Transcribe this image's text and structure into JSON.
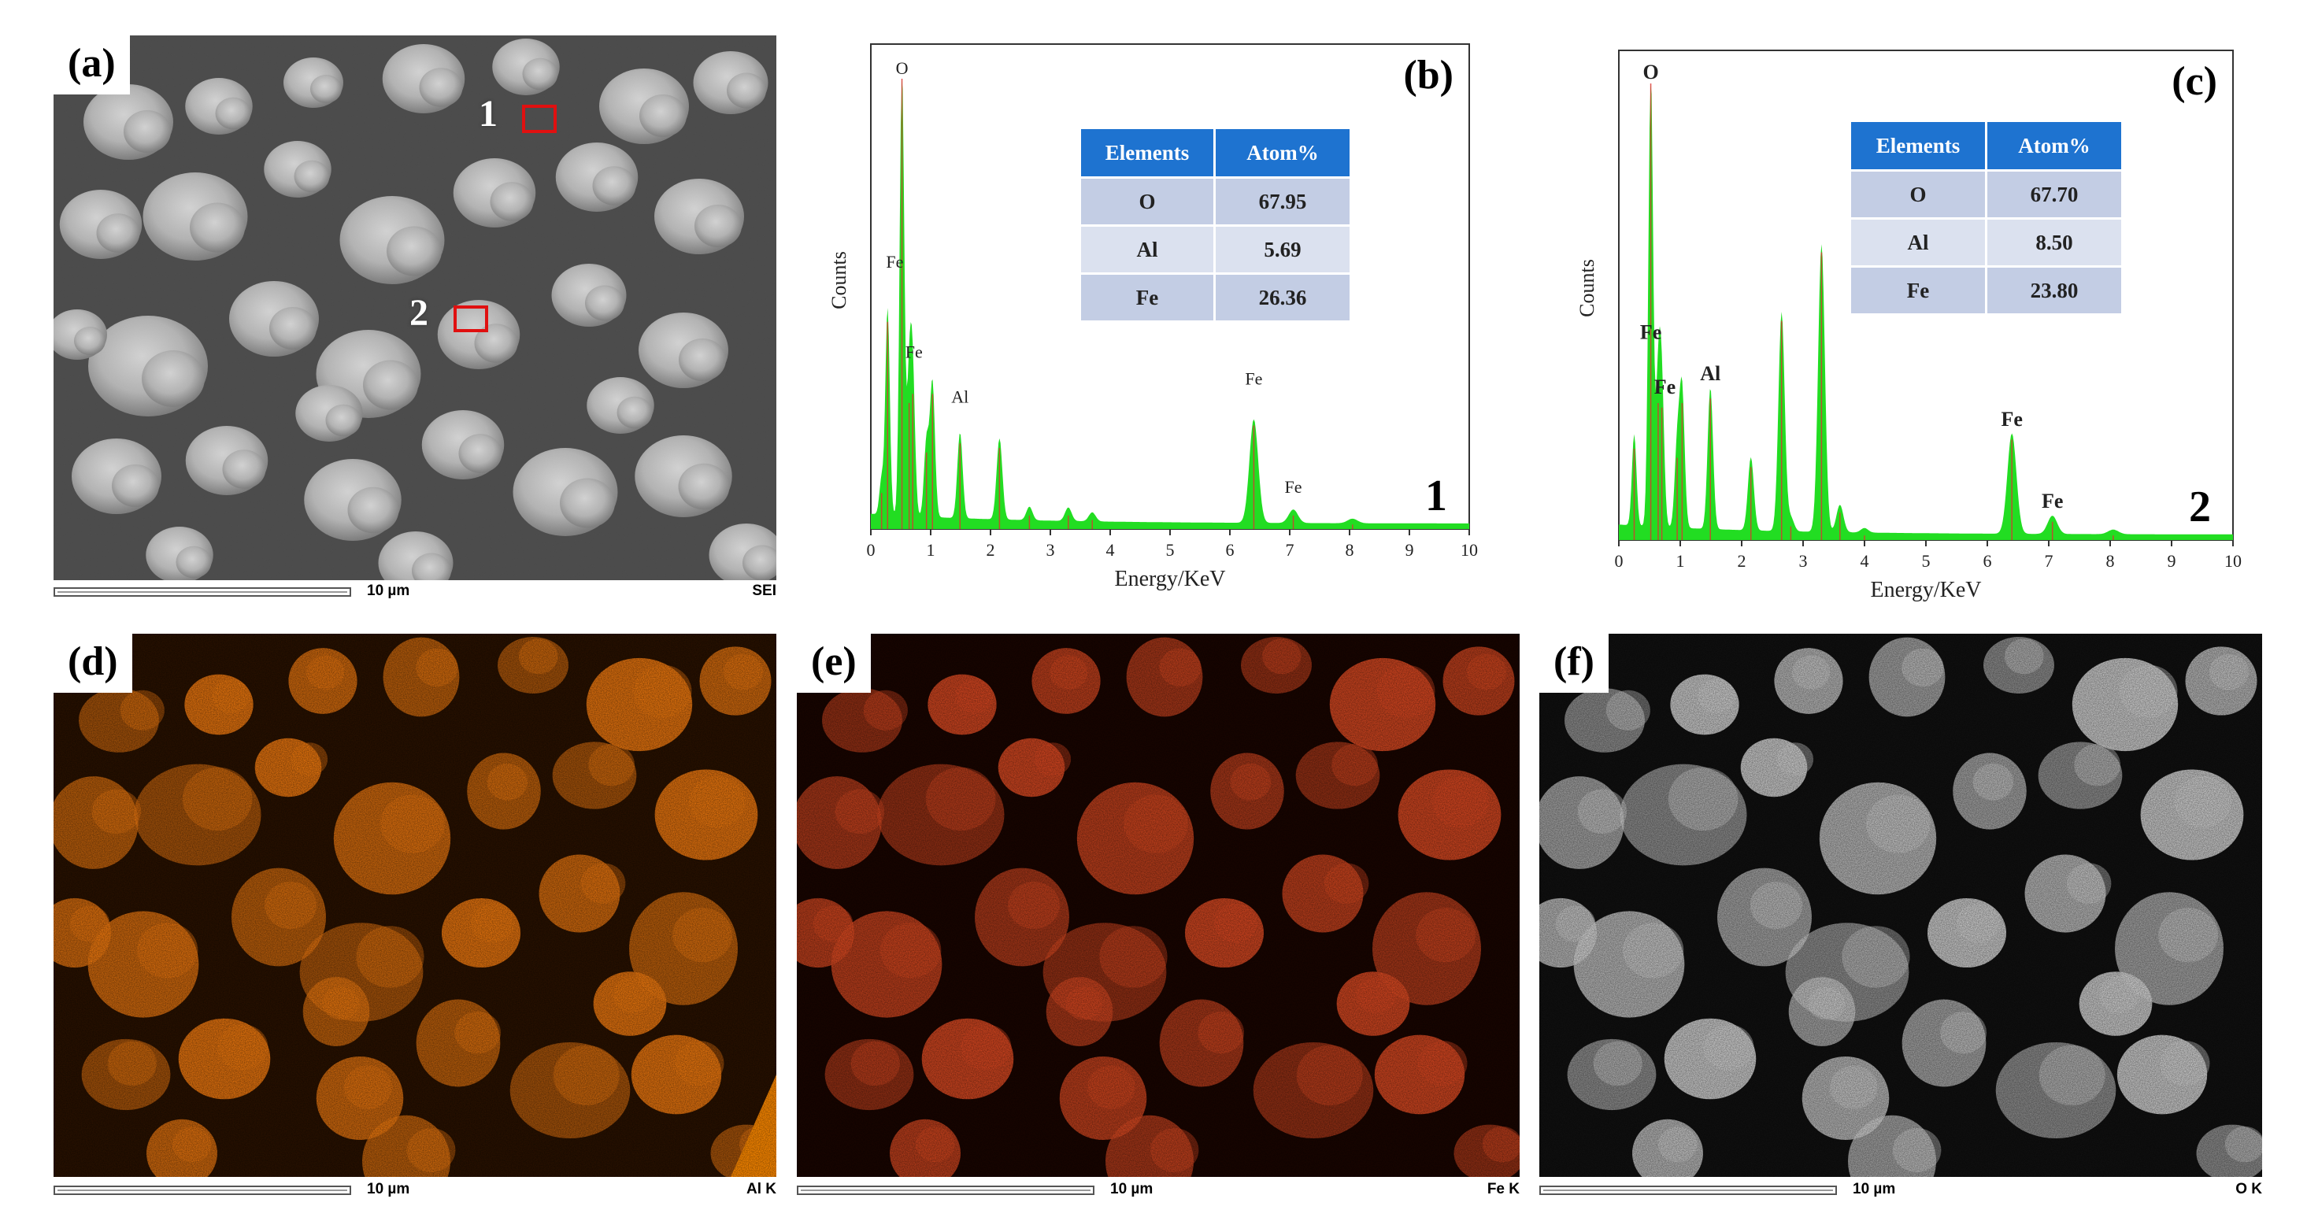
{
  "panels": {
    "a": {
      "tag": "(a)",
      "scale": "10 µm",
      "detector": "SEI",
      "marker1": "1",
      "marker2": "2"
    },
    "b": {
      "tag": "(b)",
      "spot": "1"
    },
    "c": {
      "tag": "(c)",
      "spot": "2"
    },
    "d": {
      "tag": "(d)",
      "scale": "10 µm",
      "detector": "Al K",
      "color": "#f07a10"
    },
    "e": {
      "tag": "(e)",
      "scale": "10 µm",
      "detector": "Fe K",
      "color": "#dc4a22"
    },
    "f": {
      "tag": "(f)",
      "scale": "10 µm",
      "detector": "O K",
      "color": "#d8d8d8"
    }
  },
  "tables": {
    "b": {
      "head": [
        "Elements",
        "Atom%"
      ],
      "rows": [
        [
          "O",
          "67.95"
        ],
        [
          "Al",
          "5.69"
        ],
        [
          "Fe",
          "26.36"
        ]
      ]
    },
    "c": {
      "head": [
        "Elements",
        "Atom%"
      ],
      "rows": [
        [
          "O",
          "67.70"
        ],
        [
          "Al",
          "8.50"
        ],
        [
          "Fe",
          "23.80"
        ]
      ]
    }
  },
  "colors": {
    "spectrum_fill": "#22dd22",
    "spectrum_line": "#e03030",
    "table_header": "#1e73d0"
  },
  "chart_data": [
    {
      "type": "area",
      "title": "(b)",
      "xlabel": "Energy/KeV",
      "ylabel": "Counts",
      "xlim": [
        0,
        10
      ],
      "ylim": [
        0,
        100
      ],
      "xticks": [
        0,
        1,
        2,
        3,
        4,
        5,
        6,
        7,
        8,
        9,
        10
      ],
      "grid": false,
      "series": [
        {
          "peaks": [
            {
              "x": 0.18,
              "y": 8
            },
            {
              "x": 0.28,
              "y": 46
            },
            {
              "x": 0.52,
              "y": 100
            },
            {
              "x": 0.64,
              "y": 28
            },
            {
              "x": 0.7,
              "y": 30
            },
            {
              "x": 0.93,
              "y": 17
            },
            {
              "x": 1.03,
              "y": 30
            },
            {
              "x": 1.49,
              "y": 19
            },
            {
              "x": 2.15,
              "y": 18
            },
            {
              "x": 2.65,
              "y": 3
            },
            {
              "x": 3.3,
              "y": 3
            },
            {
              "x": 3.7,
              "y": 2
            },
            {
              "x": 6.4,
              "y": 23
            },
            {
              "x": 7.06,
              "y": 3
            },
            {
              "x": 8.05,
              "y": 1
            }
          ]
        }
      ],
      "peak_labels": [
        {
          "text": "O",
          "x": 0.52,
          "y": 100
        },
        {
          "text": "Fe",
          "x": 0.4,
          "y": 57
        },
        {
          "text": "Fe",
          "x": 0.72,
          "y": 37
        },
        {
          "text": "Al",
          "x": 1.49,
          "y": 27
        },
        {
          "text": "Fe",
          "x": 6.4,
          "y": 31
        },
        {
          "text": "Fe",
          "x": 7.06,
          "y": 7
        }
      ]
    },
    {
      "type": "area",
      "title": "(c)",
      "xlabel": "Energy/KeV",
      "ylabel": "Counts",
      "xlim": [
        0,
        10
      ],
      "ylim": [
        0,
        100
      ],
      "xticks": [
        0,
        1,
        2,
        3,
        4,
        5,
        6,
        7,
        8,
        9,
        10
      ],
      "grid": false,
      "series": [
        {
          "peaks": [
            {
              "x": 0.25,
              "y": 20
            },
            {
              "x": 0.52,
              "y": 100
            },
            {
              "x": 0.64,
              "y": 30
            },
            {
              "x": 0.7,
              "y": 29
            },
            {
              "x": 0.95,
              "y": 18
            },
            {
              "x": 1.03,
              "y": 30
            },
            {
              "x": 1.49,
              "y": 31
            },
            {
              "x": 2.15,
              "y": 16
            },
            {
              "x": 2.65,
              "y": 48
            },
            {
              "x": 2.8,
              "y": 3
            },
            {
              "x": 3.3,
              "y": 63
            },
            {
              "x": 3.6,
              "y": 6
            },
            {
              "x": 4.0,
              "y": 1
            },
            {
              "x": 6.4,
              "y": 22
            },
            {
              "x": 7.06,
              "y": 4
            },
            {
              "x": 8.05,
              "y": 1
            }
          ]
        }
      ],
      "peak_labels": [
        {
          "text": "O",
          "x": 0.52,
          "y": 100
        },
        {
          "text": "Fe",
          "x": 0.52,
          "y": 43
        },
        {
          "text": "Fe",
          "x": 0.75,
          "y": 31
        },
        {
          "text": "Al",
          "x": 1.49,
          "y": 34
        },
        {
          "text": "Fe",
          "x": 6.4,
          "y": 24
        },
        {
          "text": "Fe",
          "x": 7.06,
          "y": 6
        }
      ]
    }
  ]
}
